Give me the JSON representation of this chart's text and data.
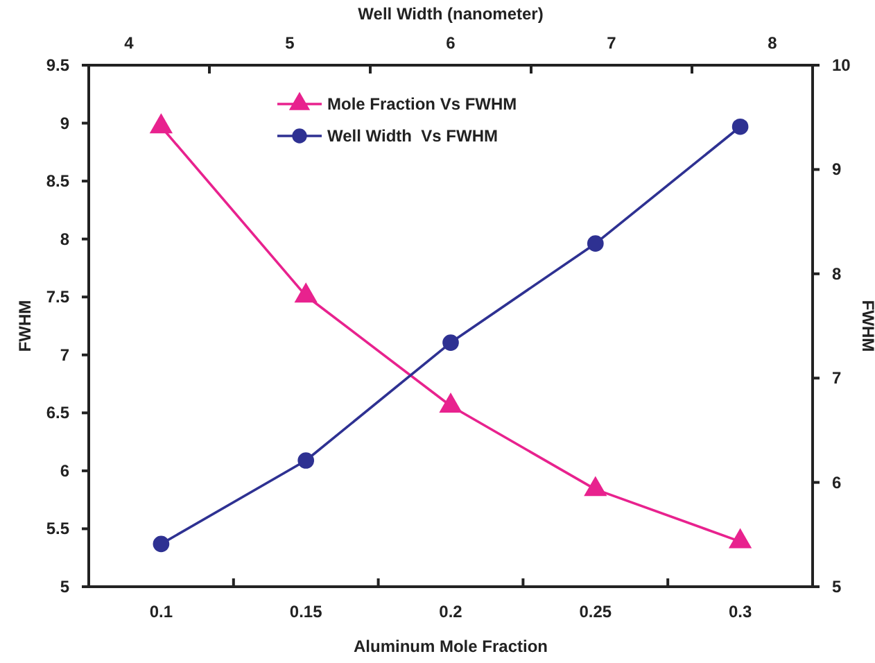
{
  "chart_data": {
    "type": "line",
    "xlabel": "Aluminum Mole Fraction",
    "x2label": "Well Width (nanometer)",
    "ylabel": "FWHM",
    "y2label": "FWHM",
    "x": [
      0.1,
      0.15,
      0.2,
      0.25,
      0.3
    ],
    "series": [
      {
        "name": "Mole Fraction Vs FWHM",
        "color": "#e8228e",
        "marker": "triangle",
        "values": [
          8.97,
          7.51,
          6.56,
          5.84,
          5.39
        ]
      },
      {
        "name": "Well Width  Vs FWHM",
        "color": "#2e3192",
        "marker": "circle",
        "axis": "y2",
        "values": [
          5.41,
          6.21,
          7.34,
          8.29,
          9.41
        ]
      }
    ],
    "xlim": [
      0.075,
      0.325
    ],
    "xticks": [
      0.1,
      {
        "value": 0.125,
        "label": null
      },
      0.15,
      {
        "value": 0.175,
        "label": null
      },
      0.2,
      {
        "value": 0.225,
        "label": null
      },
      0.25,
      {
        "value": 0.275,
        "label": null
      },
      0.3
    ],
    "x2lim": [
      3.75,
      8.25
    ],
    "x2ticks": [
      4,
      {
        "value": 4.5,
        "label": null
      },
      5,
      {
        "value": 5.5,
        "label": null
      },
      6,
      {
        "value": 6.5,
        "label": null
      },
      7,
      {
        "value": 7.5,
        "label": null
      },
      8
    ],
    "ylim": [
      5,
      9.5
    ],
    "yticks": [
      5,
      5.5,
      6,
      6.5,
      7,
      7.5,
      8,
      8.5,
      9,
      9.5
    ],
    "y2lim": [
      5,
      10
    ],
    "y2ticks": [
      5,
      6,
      7,
      8,
      9,
      10
    ],
    "grid": false,
    "legend": "top"
  }
}
